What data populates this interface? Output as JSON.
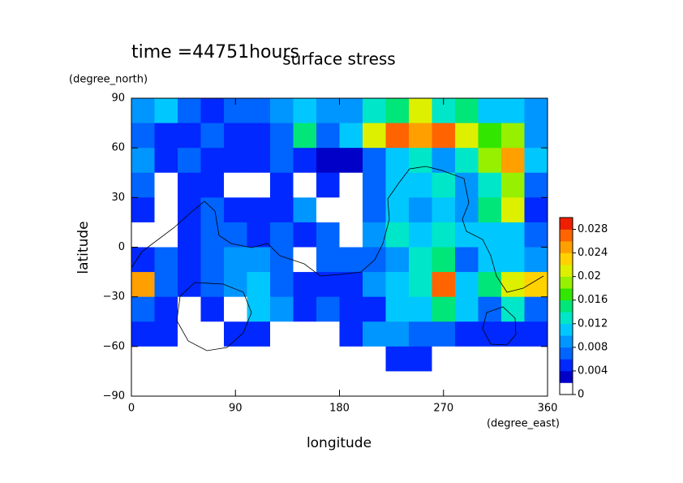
{
  "chart_data": {
    "type": "heatmap",
    "title": "surface stress",
    "subtitle": "time =44751hours",
    "xlabel": "longitude",
    "xunit": "(degree_east)",
    "ylabel": "latitude",
    "yunit": "(degree_north)",
    "xlim": [
      0,
      360
    ],
    "ylim": [
      -90,
      90
    ],
    "xticks": [
      0,
      90,
      180,
      270,
      360
    ],
    "yticks": [
      90,
      60,
      30,
      0,
      {
        "value": -30,
        "label": "−30"
      },
      {
        "value": -60,
        "label": "−60"
      },
      {
        "value": -90,
        "label": "−90"
      }
    ],
    "x": [
      0,
      20,
      40,
      60,
      80,
      100,
      120,
      140,
      160,
      180,
      200,
      220,
      240,
      260,
      280,
      300,
      320,
      340,
      360
    ],
    "y": [
      90,
      75,
      60,
      45,
      30,
      15,
      0,
      -15,
      -30,
      -45,
      -60,
      -75,
      -90
    ],
    "z": [
      [
        0.008,
        0.01,
        0.006,
        0.004,
        0.006,
        0.006,
        0.008,
        0.01,
        0.008,
        0.008,
        0.012,
        0.014,
        0.02,
        0.012,
        0.014,
        0.01,
        0.01,
        0.008
      ],
      [
        0.006,
        0.005,
        0.004,
        0.006,
        0.005,
        0.004,
        0.006,
        0.014,
        0.006,
        0.01,
        0.02,
        0.026,
        0.024,
        0.026,
        0.02,
        0.016,
        0.018,
        0.008
      ],
      [
        0.008,
        0.005,
        0.006,
        0.005,
        0.004,
        0.004,
        0.006,
        0.004,
        0.003,
        0.002,
        0.006,
        0.01,
        0.012,
        0.008,
        0.012,
        0.018,
        0.024,
        0.01
      ],
      [
        0.006,
        0.001,
        0.004,
        0.004,
        0.001,
        0.001,
        0.004,
        0.001,
        0.004,
        0.001,
        0.006,
        0.01,
        0.01,
        0.012,
        0.008,
        0.012,
        0.018,
        0.006
      ],
      [
        0.004,
        0.001,
        0.004,
        0.006,
        0.004,
        0.004,
        0.004,
        0.008,
        0.001,
        0.001,
        0.006,
        0.01,
        0.008,
        0.01,
        0.008,
        0.014,
        0.02,
        0.004
      ],
      [
        0.001,
        0.001,
        0.004,
        0.006,
        0.006,
        0.004,
        0.006,
        0.004,
        0.006,
        0.001,
        0.008,
        0.012,
        0.01,
        0.012,
        0.01,
        0.01,
        0.01,
        0.006
      ],
      [
        0.004,
        0.006,
        0.004,
        0.006,
        0.008,
        0.008,
        0.006,
        0.001,
        0.006,
        0.006,
        0.006,
        0.008,
        0.012,
        0.014,
        0.006,
        0.01,
        0.01,
        0.008
      ],
      [
        0.024,
        0.006,
        0.004,
        0.006,
        0.008,
        0.01,
        0.006,
        0.004,
        0.004,
        0.004,
        0.008,
        0.01,
        0.012,
        0.026,
        0.01,
        0.014,
        0.02,
        0.022
      ],
      [
        0.006,
        0.004,
        0.001,
        0.004,
        0.001,
        0.01,
        0.008,
        0.004,
        0.006,
        0.004,
        0.004,
        0.01,
        0.01,
        0.014,
        0.01,
        0.006,
        0.012,
        0.006
      ],
      [
        0.004,
        0.004,
        0.001,
        0.001,
        0.004,
        0.004,
        0.001,
        0.001,
        0.001,
        0.004,
        0.008,
        0.008,
        0.006,
        0.006,
        0.004,
        0.004,
        0.004,
        0.004
      ],
      [
        0.001,
        0.001,
        0.001,
        0.001,
        0.001,
        0.001,
        0.001,
        0.001,
        0.001,
        0.001,
        0.001,
        0.004,
        0.004,
        0.001,
        0.001,
        0.001,
        0.001,
        0.001
      ],
      [
        0,
        0,
        0,
        0,
        0,
        0,
        0,
        0,
        0,
        0,
        0,
        0,
        0,
        0,
        0,
        0,
        0,
        0
      ]
    ],
    "colorbar": {
      "bounds": [
        0,
        0.002,
        0.004,
        0.006,
        0.008,
        0.01,
        0.012,
        0.014,
        0.016,
        0.018,
        0.02,
        0.022,
        0.024,
        0.026,
        0.028,
        0.03
      ],
      "colors": [
        "#ffffff",
        "#0000c8",
        "#0028ff",
        "#0064ff",
        "#0096ff",
        "#00c8ff",
        "#00e6c8",
        "#00e678",
        "#32e600",
        "#96f000",
        "#dcf000",
        "#ffd200",
        "#ffa000",
        "#ff6400",
        "#f01e00"
      ],
      "ticks": [
        0,
        0.004,
        0.008,
        0.012,
        0.016,
        0.02,
        0.024,
        0.028
      ]
    }
  }
}
